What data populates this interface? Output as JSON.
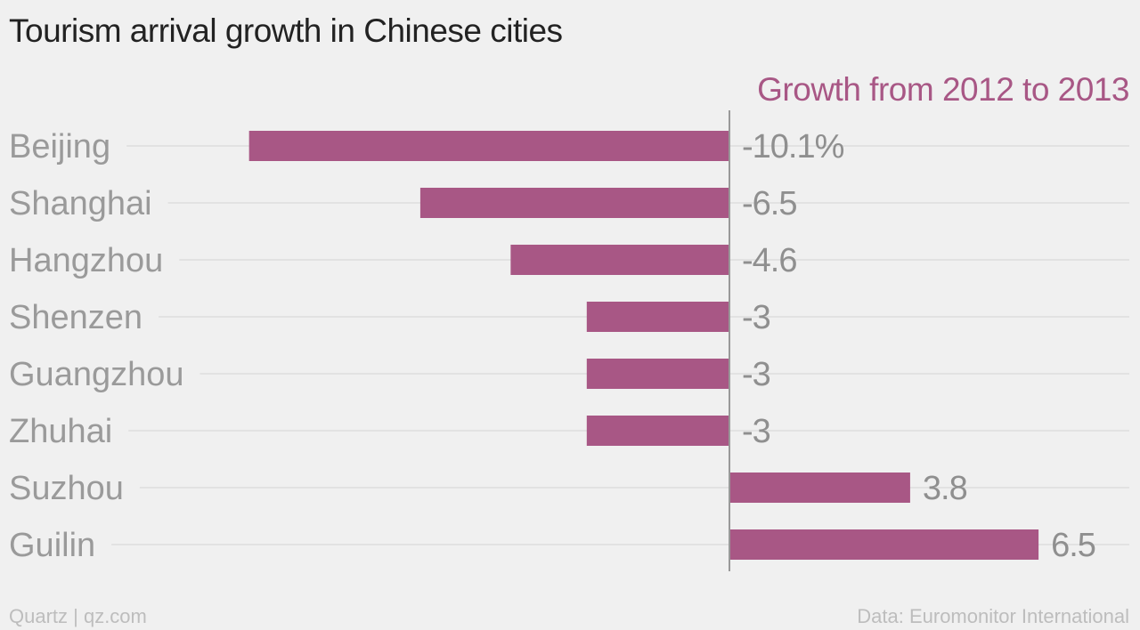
{
  "title": "Tourism arrival growth in Chinese cities",
  "footer": {
    "left": "Quartz | qz.com",
    "right": "Data: Euromonitor International"
  },
  "colors": {
    "bar": "#a85785",
    "series_label": "#a85785",
    "category_text": "#9a9a9a",
    "value_text": "#8f8f8f",
    "gridline": "#dedede",
    "zero_line": "#999999"
  },
  "chart_data": {
    "type": "bar",
    "orientation": "horizontal",
    "categories": [
      "Beijing",
      "Shanghai",
      "Hangzhou",
      "Shenzen",
      "Guangzhou",
      "Zhuhai",
      "Suzhou",
      "Guilin"
    ],
    "series": [
      {
        "name": "Growth from 2012 to 2013",
        "values": [
          -10.1,
          -6.5,
          -4.6,
          -3,
          -3,
          -3,
          3.8,
          6.5
        ],
        "labels": [
          "-10.1%",
          "-6.5",
          "-4.6",
          "-3",
          "-3",
          "-3",
          "3.8",
          "6.5"
        ]
      }
    ],
    "xlim": [
      -15,
      8.5
    ],
    "grid": true,
    "legend": "top-right"
  }
}
